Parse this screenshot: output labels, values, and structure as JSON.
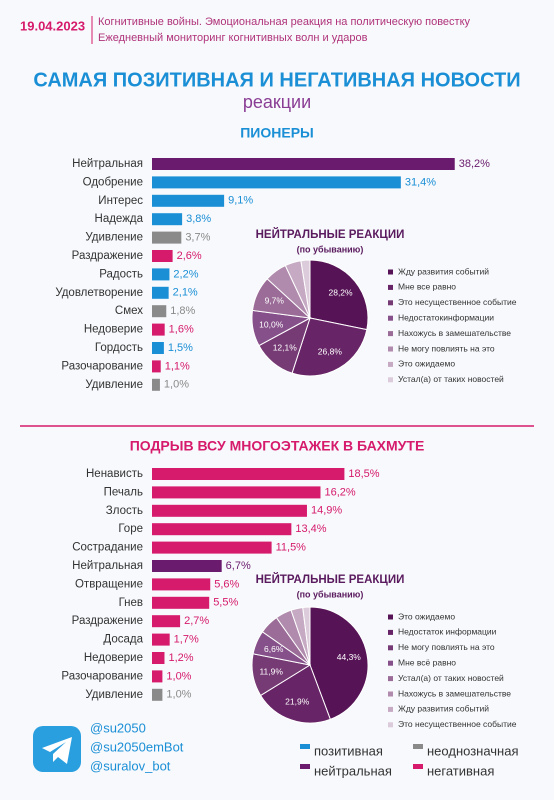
{
  "header": {
    "date": "19.04.2023",
    "lines": [
      "Когнитивные войны. Эмоциональная реакция на политическую повестку",
      "Ежедневный мониторинг когнитивных волн и ударов"
    ]
  },
  "title": "САМАЯ ПОЗИТИВНАЯ И НЕГАТИВНАЯ НОВОСТИ",
  "subtitle": "реакции",
  "chart_data": [
    {
      "type": "bar",
      "title": "ПИОНЕРЫ",
      "categories": [
        "Нейтральная",
        "Одобрение",
        "Интерес",
        "Надежда",
        "Удивление",
        "Раздражение",
        "Радость",
        "Удовлетворение",
        "Смех",
        "Недоверие",
        "Гордость",
        "Разочарование",
        "Удивление"
      ],
      "values": [
        38.2,
        31.4,
        9.1,
        3.8,
        3.7,
        2.6,
        2.2,
        2.1,
        1.8,
        1.6,
        1.5,
        1.1,
        1.0
      ],
      "value_labels": [
        "38,2%",
        "31,4%",
        "9,1%",
        "3,8%",
        "3,7%",
        "2,6%",
        "2,2%",
        "2,1%",
        "1,8%",
        "1,6%",
        "1,5%",
        "1,1%",
        "1,0%"
      ],
      "colors": [
        "#6a1b6e",
        "#1b8fd6",
        "#1b8fd6",
        "#1b8fd6",
        "#8a8a8a",
        "#d61a6c",
        "#1b8fd6",
        "#1b8fd6",
        "#8a8a8a",
        "#d61a6c",
        "#1b8fd6",
        "#d61a6c",
        "#8a8a8a"
      ],
      "xlim": [
        0,
        40
      ]
    },
    {
      "type": "pie",
      "title": "НЕЙТРАЛЬНЫЕ РЕАКЦИИ",
      "subtitle": "(по убыванию)",
      "categories": [
        "Жду развития событий",
        "Мне все равно",
        "Это несущественное событие",
        "Недостатокинформации",
        "Нахожусь в замешательстве",
        "Не могу повлиять на это",
        "Это ожидаемо",
        "Устал(а) от таких новостей"
      ],
      "values": [
        28.2,
        26.8,
        12.1,
        10.0,
        9.7,
        6.2,
        4.5,
        2.5
      ],
      "value_labels": [
        "28,2%",
        "26,8%",
        "12,1%",
        "10,0%",
        "9,7%",
        null,
        null,
        null
      ],
      "colors": [
        "#561356",
        "#672466",
        "#763a75",
        "#86508a",
        "#9a6c97",
        "#b08bad",
        "#c6aac4",
        "#dccbda"
      ]
    },
    {
      "type": "bar",
      "title": "ПОДРЫВ ВСУ МНОГОЭТАЖЕК В БАХМУТЕ",
      "categories": [
        "Ненависть",
        "Печаль",
        "Злость",
        "Горе",
        "Сострадание",
        "Нейтральная",
        "Отвращение",
        "Гнев",
        "Раздражение",
        "Досада",
        "Недоверие",
        "Разочарование",
        "Удивление"
      ],
      "values": [
        18.5,
        16.2,
        14.9,
        13.4,
        11.5,
        6.7,
        5.6,
        5.5,
        2.7,
        1.7,
        1.2,
        1.0,
        1.0
      ],
      "value_labels": [
        "18,5%",
        "16,2%",
        "14,9%",
        "13,4%",
        "11,5%",
        "6,7%",
        "5,6%",
        "5,5%",
        "2,7%",
        "1,7%",
        "1,2%",
        "1,0%",
        "1,0%"
      ],
      "colors": [
        "#d61a6c",
        "#d61a6c",
        "#d61a6c",
        "#d61a6c",
        "#d61a6c",
        "#6a1b6e",
        "#d61a6c",
        "#d61a6c",
        "#d61a6c",
        "#d61a6c",
        "#d61a6c",
        "#d61a6c",
        "#8a8a8a"
      ],
      "xlim": [
        0,
        20
      ]
    },
    {
      "type": "pie",
      "title": "НЕЙТРАЛЬНЫЕ РЕАКЦИИ",
      "subtitle": "(по убыванию)",
      "categories": [
        "Это ожидаемо",
        "Недостаток информации",
        "Не могу повлиять на это",
        "Мне всё равно",
        "Устал(а) от таких новостей",
        "Нахожусь в замешательстве",
        "Жду развития событий",
        "Это несущественное событие"
      ],
      "values": [
        44.3,
        21.9,
        11.9,
        6.6,
        5.5,
        4.5,
        3.3,
        2.0
      ],
      "value_labels": [
        "44,3%",
        "21,9%",
        "11,9%",
        "6,6%",
        null,
        null,
        null,
        null
      ],
      "colors": [
        "#561356",
        "#672466",
        "#763a75",
        "#86508a",
        "#9a6c97",
        "#b08bad",
        "#c6aac4",
        "#dccbda"
      ]
    }
  ],
  "footer": {
    "accounts": [
      "@su2050",
      "@su2050emBot",
      "@suralov_bot"
    ],
    "legend": [
      {
        "name": "позитивная",
        "color": "#1b8fd6"
      },
      {
        "name": "неоднозначная",
        "color": "#8a8a8a"
      },
      {
        "name": "нейтральная",
        "color": "#6a1b6e"
      },
      {
        "name": "негативная",
        "color": "#d61a6c"
      }
    ]
  }
}
